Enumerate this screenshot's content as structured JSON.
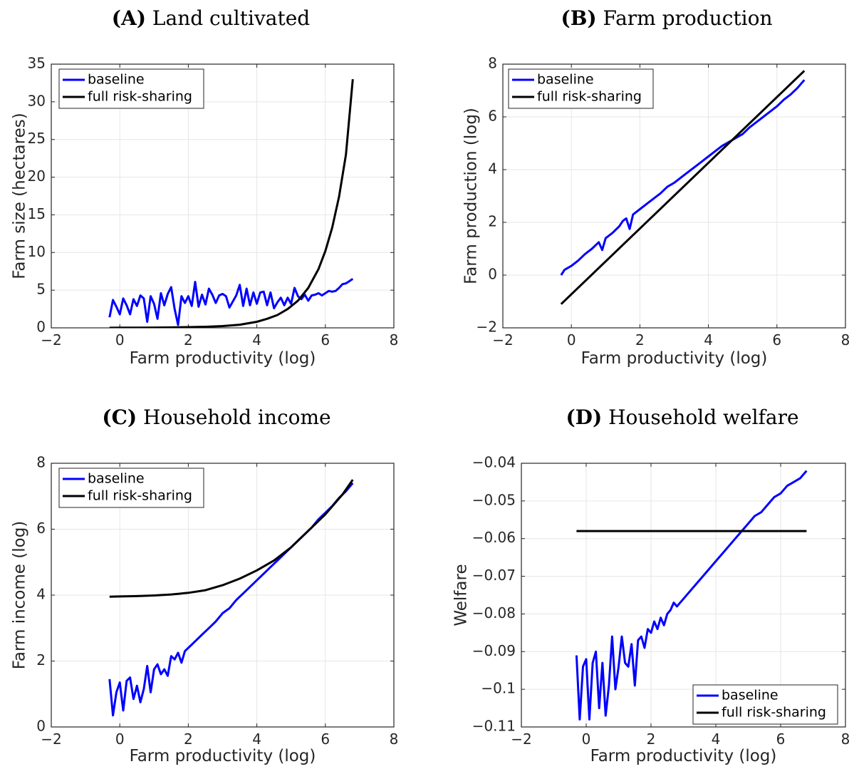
{
  "colors": {
    "baseline": "#0000ff",
    "full_risk_sharing": "#000000"
  },
  "chart_data": [
    {
      "type": "line",
      "label": "(A)",
      "title": "Land cultivated",
      "xlabel": "Farm productivity (log)",
      "ylabel": "Farm size (hectares)",
      "xlim": [
        -2,
        8
      ],
      "ylim": [
        0,
        35
      ],
      "xticks": [
        -2,
        0,
        2,
        4,
        6,
        8
      ],
      "yticks": [
        0,
        5,
        10,
        15,
        20,
        25,
        30,
        35
      ],
      "grid": true,
      "legend_position": "top-left",
      "series": [
        {
          "name": "baseline",
          "color": "#0000ff",
          "x": [
            -0.3,
            -0.2,
            -0.1,
            0.0,
            0.1,
            0.2,
            0.3,
            0.4,
            0.5,
            0.6,
            0.7,
            0.8,
            0.9,
            1.0,
            1.1,
            1.2,
            1.3,
            1.4,
            1.5,
            1.6,
            1.7,
            1.8,
            1.9,
            2.0,
            2.1,
            2.2,
            2.3,
            2.4,
            2.5,
            2.6,
            2.7,
            2.8,
            2.9,
            3.0,
            3.1,
            3.2,
            3.3,
            3.4,
            3.5,
            3.6,
            3.7,
            3.8,
            3.9,
            4.0,
            4.1,
            4.2,
            4.3,
            4.4,
            4.5,
            4.6,
            4.7,
            4.8,
            4.9,
            5.0,
            5.1,
            5.2,
            5.3,
            5.4,
            5.5,
            5.6,
            5.7,
            5.8,
            5.9,
            6.0,
            6.1,
            6.2,
            6.3,
            6.4,
            6.5,
            6.6,
            6.7,
            6.8
          ],
          "y": [
            1.4,
            3.7,
            2.8,
            1.8,
            3.9,
            3.0,
            1.8,
            3.8,
            2.9,
            4.3,
            3.9,
            0.8,
            4.2,
            3.2,
            1.2,
            4.6,
            3.0,
            4.5,
            5.4,
            2.5,
            0.4,
            4.2,
            3.3,
            4.2,
            2.9,
            6.1,
            2.8,
            4.4,
            3.1,
            5.2,
            4.4,
            3.3,
            4.3,
            4.5,
            4.2,
            2.7,
            3.5,
            4.3,
            5.7,
            2.9,
            5.2,
            3.0,
            4.7,
            3.2,
            4.7,
            4.8,
            3.0,
            4.7,
            2.6,
            3.4,
            4.0,
            3.0,
            4.0,
            3.2,
            5.3,
            4.2,
            3.8,
            4.4,
            3.6,
            4.3,
            4.4,
            4.6,
            4.3,
            4.6,
            4.9,
            4.8,
            4.9,
            5.3,
            5.8,
            5.9,
            6.2,
            6.5
          ]
        },
        {
          "name": "full risk-sharing",
          "color": "#000000",
          "x": [
            -0.3,
            0.0,
            0.5,
            1.0,
            1.5,
            2.0,
            2.5,
            3.0,
            3.5,
            4.0,
            4.3,
            4.6,
            4.9,
            5.2,
            5.5,
            5.8,
            6.0,
            6.2,
            6.4,
            6.6,
            6.8
          ],
          "y": [
            0.01,
            0.02,
            0.03,
            0.04,
            0.06,
            0.09,
            0.14,
            0.24,
            0.42,
            0.8,
            1.2,
            1.7,
            2.5,
            3.6,
            5.3,
            7.8,
            10.2,
            13.3,
            17.4,
            23.0,
            33.0
          ]
        }
      ]
    },
    {
      "type": "line",
      "label": "(B)",
      "title": "Farm production",
      "xlabel": "Farm productivity (log)",
      "ylabel": "Farm production (log)",
      "xlim": [
        -2,
        8
      ],
      "ylim": [
        -2,
        8
      ],
      "xticks": [
        -2,
        0,
        2,
        4,
        6,
        8
      ],
      "yticks": [
        -2,
        0,
        2,
        4,
        6,
        8
      ],
      "grid": true,
      "legend_position": "top-left",
      "series": [
        {
          "name": "baseline",
          "color": "#0000ff",
          "x": [
            -0.3,
            -0.2,
            0.0,
            0.2,
            0.4,
            0.6,
            0.8,
            0.9,
            1.0,
            1.2,
            1.4,
            1.5,
            1.6,
            1.7,
            1.8,
            2.0,
            2.2,
            2.4,
            2.6,
            2.8,
            3.0,
            3.2,
            3.4,
            3.6,
            3.8,
            4.0,
            4.2,
            4.4,
            4.6,
            4.8,
            5.0,
            5.2,
            5.4,
            5.6,
            5.8,
            6.0,
            6.2,
            6.4,
            6.6,
            6.8
          ],
          "y": [
            0.0,
            0.2,
            0.35,
            0.55,
            0.8,
            1.0,
            1.25,
            0.95,
            1.4,
            1.6,
            1.85,
            2.05,
            2.15,
            1.75,
            2.3,
            2.5,
            2.7,
            2.9,
            3.1,
            3.35,
            3.5,
            3.7,
            3.9,
            4.1,
            4.3,
            4.5,
            4.7,
            4.9,
            5.05,
            5.2,
            5.35,
            5.6,
            5.8,
            6.0,
            6.2,
            6.4,
            6.65,
            6.85,
            7.1,
            7.4
          ]
        },
        {
          "name": "full risk-sharing",
          "color": "#000000",
          "x": [
            -0.3,
            6.8
          ],
          "y": [
            -1.1,
            7.75
          ]
        }
      ]
    },
    {
      "type": "line",
      "label": "(C)",
      "title": "Household income",
      "xlabel": "Farm productivity (log)",
      "ylabel": "Farm income (log)",
      "xlim": [
        -2,
        8
      ],
      "ylim": [
        0,
        8
      ],
      "xticks": [
        -2,
        0,
        2,
        4,
        6,
        8
      ],
      "yticks": [
        0,
        2,
        4,
        6,
        8
      ],
      "grid": true,
      "legend_position": "top-left",
      "series": [
        {
          "name": "baseline",
          "color": "#0000ff",
          "x": [
            -0.3,
            -0.2,
            -0.1,
            0.0,
            0.1,
            0.2,
            0.3,
            0.4,
            0.5,
            0.6,
            0.7,
            0.8,
            0.9,
            1.0,
            1.1,
            1.2,
            1.3,
            1.4,
            1.5,
            1.6,
            1.7,
            1.8,
            1.9,
            2.0,
            2.2,
            2.4,
            2.6,
            2.8,
            3.0,
            3.2,
            3.4,
            3.6,
            3.8,
            4.0,
            4.2,
            4.4,
            4.6,
            4.8,
            5.0,
            5.2,
            5.4,
            5.6,
            5.8,
            6.0,
            6.2,
            6.4,
            6.6,
            6.8
          ],
          "y": [
            1.45,
            0.35,
            1.05,
            1.35,
            0.5,
            1.4,
            1.5,
            0.85,
            1.25,
            0.75,
            1.15,
            1.85,
            1.05,
            1.75,
            1.9,
            1.6,
            1.75,
            1.55,
            2.15,
            2.05,
            2.25,
            1.95,
            2.3,
            2.4,
            2.6,
            2.8,
            3.0,
            3.2,
            3.45,
            3.6,
            3.85,
            4.05,
            4.25,
            4.45,
            4.65,
            4.85,
            5.05,
            5.25,
            5.45,
            5.65,
            5.85,
            6.05,
            6.3,
            6.5,
            6.7,
            6.95,
            7.15,
            7.4
          ]
        },
        {
          "name": "full risk-sharing",
          "color": "#000000",
          "x": [
            -0.3,
            0.0,
            0.5,
            1.0,
            1.5,
            2.0,
            2.5,
            3.0,
            3.5,
            4.0,
            4.5,
            5.0,
            5.5,
            6.0,
            6.5,
            6.8
          ],
          "y": [
            3.95,
            3.96,
            3.97,
            3.99,
            4.02,
            4.07,
            4.15,
            4.3,
            4.5,
            4.75,
            5.05,
            5.45,
            5.95,
            6.45,
            7.05,
            7.5
          ]
        }
      ]
    },
    {
      "type": "line",
      "label": "(D)",
      "title": "Household welfare",
      "xlabel": "Farm productivity (log)",
      "ylabel": "Welfare",
      "xlim": [
        -2,
        8
      ],
      "ylim": [
        -0.11,
        -0.04
      ],
      "xticks": [
        -2,
        0,
        2,
        4,
        6,
        8
      ],
      "yticks": [
        -0.11,
        -0.1,
        -0.09,
        -0.08,
        -0.07,
        -0.06,
        -0.05,
        -0.04
      ],
      "grid": true,
      "legend_position": "bottom-right",
      "series": [
        {
          "name": "baseline",
          "color": "#0000ff",
          "x": [
            -0.3,
            -0.2,
            -0.1,
            0.0,
            0.1,
            0.2,
            0.3,
            0.4,
            0.5,
            0.6,
            0.7,
            0.8,
            0.9,
            1.0,
            1.1,
            1.2,
            1.3,
            1.4,
            1.5,
            1.6,
            1.7,
            1.8,
            1.9,
            2.0,
            2.1,
            2.2,
            2.3,
            2.4,
            2.5,
            2.6,
            2.7,
            2.8,
            3.0,
            3.2,
            3.4,
            3.6,
            3.8,
            4.0,
            4.2,
            4.4,
            4.6,
            4.8,
            5.0,
            5.2,
            5.4,
            5.6,
            5.8,
            6.0,
            6.2,
            6.4,
            6.6,
            6.8
          ],
          "y": [
            -0.091,
            -0.108,
            -0.094,
            -0.092,
            -0.108,
            -0.093,
            -0.09,
            -0.105,
            -0.093,
            -0.107,
            -0.099,
            -0.086,
            -0.1,
            -0.094,
            -0.086,
            -0.093,
            -0.094,
            -0.088,
            -0.099,
            -0.087,
            -0.086,
            -0.089,
            -0.084,
            -0.085,
            -0.082,
            -0.084,
            -0.081,
            -0.083,
            -0.08,
            -0.079,
            -0.077,
            -0.078,
            -0.076,
            -0.074,
            -0.072,
            -0.07,
            -0.068,
            -0.066,
            -0.064,
            -0.062,
            -0.06,
            -0.058,
            -0.056,
            -0.054,
            -0.053,
            -0.051,
            -0.049,
            -0.048,
            -0.046,
            -0.045,
            -0.044,
            -0.042
          ]
        },
        {
          "name": "full risk-sharing",
          "color": "#000000",
          "x": [
            -0.3,
            6.8
          ],
          "y": [
            -0.058,
            -0.058
          ]
        }
      ]
    }
  ]
}
